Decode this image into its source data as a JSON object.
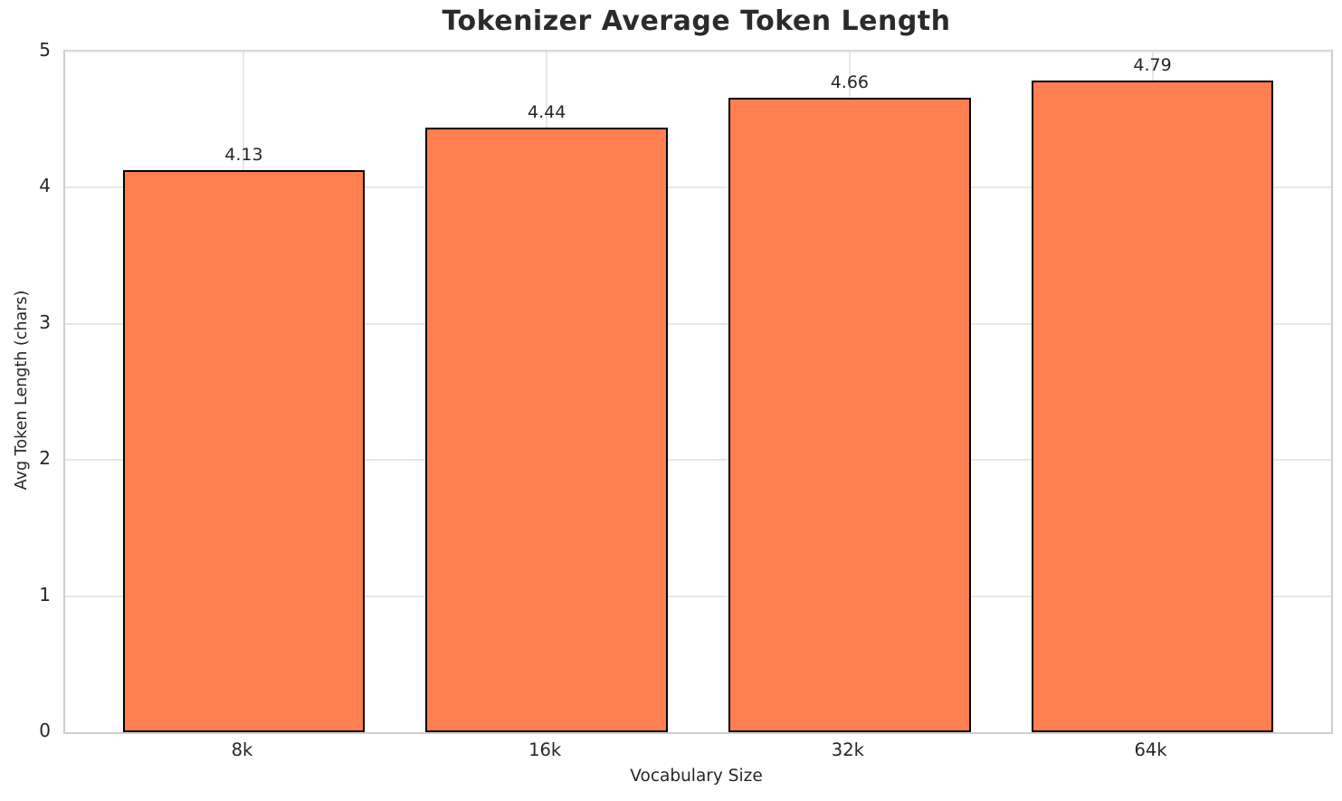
{
  "chart_data": {
    "type": "bar",
    "title": "Tokenizer Average Token Length",
    "xlabel": "Vocabulary Size",
    "ylabel": "Avg Token Length (chars)",
    "categories": [
      "8k",
      "16k",
      "32k",
      "64k"
    ],
    "values": [
      4.13,
      4.44,
      4.66,
      4.79
    ],
    "value_labels": [
      "4.13",
      "4.44",
      "4.66",
      "4.79"
    ],
    "yticks": [
      0,
      1,
      2,
      3,
      4,
      5
    ],
    "ytick_labels": [
      "0",
      "1",
      "2",
      "3",
      "4",
      "5"
    ],
    "ylim": [
      0,
      5
    ],
    "bar_width_fraction": 0.8,
    "grid": true,
    "legend_position": "none",
    "colors": {
      "bar_fill": "#FF7F50",
      "bar_edge": "#000000",
      "grid": "#e7e7e7",
      "spine": "#cfcfcf",
      "text": "#262626",
      "title_text": "#2b2b2b",
      "background": "#ffffff"
    }
  }
}
